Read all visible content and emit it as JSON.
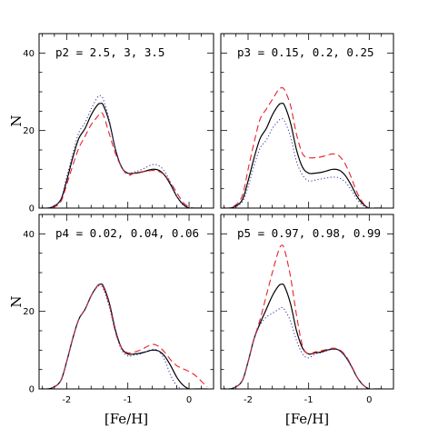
{
  "chart_data": [
    {
      "type": "line",
      "title": "p2 = 2.5, 3, 3.5",
      "ylabel": "N",
      "xlabel": "",
      "xlim": [
        -2.45,
        0.4
      ],
      "ylim": [
        0,
        45
      ],
      "xticks": [
        "-2",
        "-1",
        "0"
      ],
      "yticks": [
        "0",
        "20",
        "40"
      ],
      "x": [
        -2.4,
        -2.25,
        -2.1,
        -2.0,
        -1.9,
        -1.8,
        -1.7,
        -1.6,
        -1.5,
        -1.45,
        -1.4,
        -1.3,
        -1.2,
        -1.1,
        -1.0,
        -0.9,
        -0.8,
        -0.7,
        -0.6,
        -0.5,
        -0.4,
        -0.3,
        -0.2,
        -0.1,
        0.0,
        0.1,
        0.2
      ],
      "series": [
        {
          "style": "solid",
          "color": "#000000",
          "values": [
            0,
            0.2,
            2,
            7,
            13,
            18,
            20.5,
            24,
            26.5,
            27,
            26.5,
            22,
            15,
            10.5,
            9,
            9,
            9.2,
            9.6,
            10,
            9.8,
            8.5,
            6,
            3,
            1,
            0,
            0,
            0
          ]
        },
        {
          "style": "dashed",
          "color": "#e8202a",
          "values": [
            0,
            0.1,
            1.5,
            6,
            11,
            15.5,
            18.5,
            21.5,
            23.5,
            24.5,
            24,
            19,
            14,
            10.5,
            8.5,
            9,
            9.3,
            9.5,
            9.7,
            9.5,
            8.5,
            6.5,
            4,
            1.5,
            0.3,
            0,
            0
          ]
        },
        {
          "style": "dotted",
          "color": "#4040b0",
          "values": [
            0,
            0.2,
            2.2,
            8,
            14,
            19.5,
            22,
            25.5,
            28.5,
            29,
            28,
            22.5,
            15,
            10.5,
            9,
            9.3,
            9.8,
            10.5,
            11.2,
            11,
            9.5,
            6.5,
            3,
            0.8,
            0,
            0,
            0
          ]
        }
      ]
    },
    {
      "type": "line",
      "title": "p3 = 0.15, 0.2, 0.25",
      "ylabel": "",
      "xlabel": "",
      "xlim": [
        -2.45,
        0.4
      ],
      "ylim": [
        0,
        45
      ],
      "xticks": [
        "-2",
        "-1",
        "0"
      ],
      "yticks": [
        "0",
        "20",
        "40"
      ],
      "x": [
        -2.4,
        -2.25,
        -2.1,
        -2.0,
        -1.9,
        -1.8,
        -1.7,
        -1.6,
        -1.5,
        -1.45,
        -1.4,
        -1.3,
        -1.2,
        -1.1,
        -1.0,
        -0.9,
        -0.8,
        -0.7,
        -0.6,
        -0.5,
        -0.4,
        -0.3,
        -0.2,
        -0.1,
        0.0,
        0.1,
        0.2
      ],
      "series": [
        {
          "style": "solid",
          "color": "#000000",
          "values": [
            0,
            0.2,
            2,
            7,
            13,
            18,
            20.5,
            24,
            26.5,
            27,
            26.5,
            22,
            15,
            10.5,
            9,
            9,
            9.2,
            9.6,
            10,
            9.8,
            8.5,
            6,
            3,
            1,
            0,
            0,
            0
          ]
        },
        {
          "style": "dashed",
          "color": "#e8202a",
          "values": [
            0,
            0.3,
            3,
            10,
            17,
            23,
            25.5,
            28,
            30.5,
            31,
            30.5,
            26.5,
            19,
            14,
            13,
            13,
            13.2,
            13.6,
            14,
            13.5,
            11.5,
            8,
            4,
            1.3,
            0,
            0,
            0
          ]
        },
        {
          "style": "dotted",
          "color": "#4040b0",
          "values": [
            0,
            0.1,
            1.5,
            5.5,
            11,
            15.5,
            17.5,
            20.5,
            22.5,
            23,
            22.5,
            18.5,
            12,
            8.5,
            7,
            7.2,
            7.5,
            7.8,
            8,
            7.8,
            6.8,
            4.8,
            2.3,
            0.6,
            0,
            0,
            0
          ]
        }
      ]
    },
    {
      "type": "line",
      "title": "p4 = 0.02, 0.04, 0.06",
      "ylabel": "N",
      "xlabel": "[Fe/H]",
      "xlim": [
        -2.45,
        0.4
      ],
      "ylim": [
        0,
        45
      ],
      "xticks": [
        "-2",
        "-1",
        "0"
      ],
      "yticks": [
        "0",
        "20",
        "40"
      ],
      "x": [
        -2.4,
        -2.25,
        -2.1,
        -2.0,
        -1.9,
        -1.8,
        -1.7,
        -1.6,
        -1.5,
        -1.45,
        -1.4,
        -1.3,
        -1.2,
        -1.1,
        -1.0,
        -0.9,
        -0.8,
        -0.7,
        -0.6,
        -0.5,
        -0.4,
        -0.3,
        -0.2,
        -0.1,
        0.0,
        0.1,
        0.2,
        0.3
      ],
      "series": [
        {
          "style": "solid",
          "color": "#000000",
          "values": [
            0,
            0.2,
            2,
            7,
            13,
            18,
            20.5,
            24,
            26.5,
            27,
            26.5,
            22,
            15,
            10.5,
            9,
            9,
            9.2,
            9.6,
            10,
            9.8,
            8.5,
            6,
            3,
            1,
            0,
            0,
            0,
            0
          ]
        },
        {
          "style": "dashed",
          "color": "#e8202a",
          "values": [
            0,
            0.2,
            2,
            7,
            13,
            18,
            20.5,
            24,
            26.5,
            26.8,
            26.2,
            21.5,
            14.5,
            10.5,
            9.3,
            9.5,
            10,
            10.8,
            11.5,
            11,
            9.5,
            7.5,
            6,
            5.2,
            4.5,
            3.5,
            2,
            0.5
          ]
        },
        {
          "style": "dotted",
          "color": "#4040b0",
          "values": [
            0,
            0.2,
            2,
            7,
            13,
            18,
            20.5,
            24,
            26.3,
            26.5,
            25.8,
            21,
            14.5,
            10,
            8.5,
            8.7,
            9,
            9.6,
            10.2,
            9.8,
            7.5,
            3.5,
            0.8,
            0,
            0,
            0,
            0,
            0
          ]
        }
      ]
    },
    {
      "type": "line",
      "title": "p5 = 0.97, 0.98, 0.99",
      "ylabel": "",
      "xlabel": "[Fe/H]",
      "xlim": [
        -2.45,
        0.4
      ],
      "ylim": [
        0,
        45
      ],
      "xticks": [
        "-2",
        "-1",
        "0"
      ],
      "yticks": [
        "0",
        "20",
        "40"
      ],
      "x": [
        -2.4,
        -2.25,
        -2.1,
        -2.0,
        -1.9,
        -1.8,
        -1.7,
        -1.6,
        -1.5,
        -1.45,
        -1.4,
        -1.3,
        -1.2,
        -1.1,
        -1.0,
        -0.9,
        -0.8,
        -0.7,
        -0.6,
        -0.5,
        -0.4,
        -0.3,
        -0.2,
        -0.1,
        0.0,
        0.1,
        0.2
      ],
      "series": [
        {
          "style": "solid",
          "color": "#000000",
          "values": [
            0,
            0.2,
            2,
            7,
            13,
            17,
            20.5,
            24,
            26.5,
            27,
            26.5,
            22,
            15,
            10.5,
            9,
            9.3,
            9.5,
            10,
            10.3,
            10,
            8.5,
            6,
            3,
            1,
            0,
            0,
            0
          ]
        },
        {
          "style": "dashed",
          "color": "#e8202a",
          "values": [
            0,
            0.2,
            2,
            7,
            13,
            18,
            24,
            30,
            35.5,
            37,
            36,
            29,
            19,
            11,
            9,
            9.5,
            9.8,
            10.2,
            10.5,
            10.2,
            8.8,
            6.2,
            3,
            1,
            0,
            0,
            0
          ]
        },
        {
          "style": "dotted",
          "color": "#4040b0",
          "values": [
            0,
            0.2,
            2,
            7,
            13,
            16.5,
            18.5,
            19.5,
            20.5,
            21,
            20.5,
            17.5,
            12.5,
            9,
            8,
            9,
            9.3,
            9.8,
            10.2,
            10,
            8.5,
            6,
            3,
            1,
            0,
            0,
            0
          ]
        }
      ]
    }
  ]
}
